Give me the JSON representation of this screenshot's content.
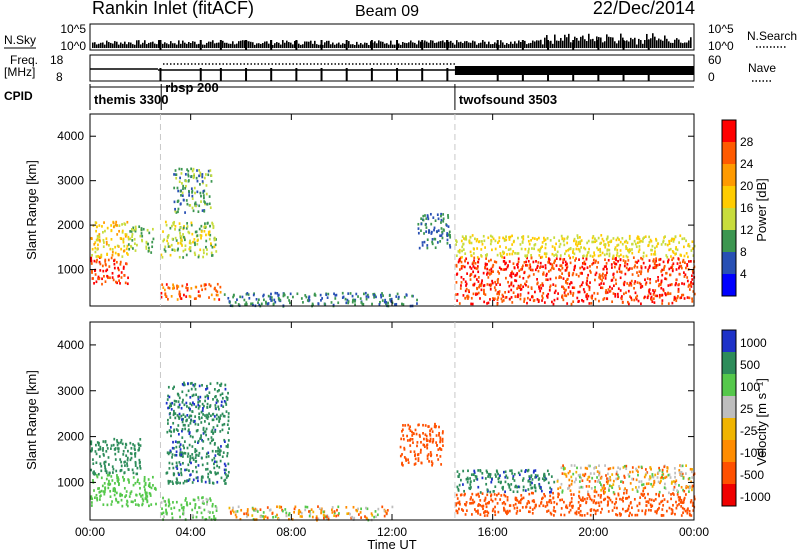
{
  "header": {
    "station": "Rankin Inlet (fitACF)",
    "beam": "Beam 09",
    "date": "22/Dec/2014"
  },
  "noise_panel": {
    "left_label": "N.Sky",
    "left_ticks": [
      "10^5",
      "10^0"
    ],
    "right_label": "N.Search",
    "right_ticks": [
      "10^5",
      "10^0"
    ]
  },
  "freq_panel": {
    "left_label_1": "Freq.",
    "left_label_2": "[MHz]",
    "left_ticks": [
      "18",
      "8"
    ],
    "right_label": "Nave",
    "right_ticks": [
      "60",
      "0"
    ]
  },
  "cpid": {
    "label": "CPID",
    "programs": [
      {
        "name": "themis 3300",
        "start_hour": 0.0
      },
      {
        "name": "rbsp 200",
        "start_hour": 2.83
      },
      {
        "name": "twofsound 3503",
        "start_hour": 14.5
      }
    ]
  },
  "panels": {
    "xlabel": "Time UT",
    "xticks": [
      "00:00",
      "04:00",
      "08:00",
      "12:00",
      "16:00",
      "20:00",
      "00:00"
    ],
    "ylabel": "Slant Range [km]",
    "yticks": [
      "4000",
      "3000",
      "2000",
      "1000"
    ]
  },
  "power_scale": {
    "title": "Power [dB]",
    "labels": [
      "28",
      "24",
      "20",
      "16",
      "12",
      "8",
      "4"
    ],
    "colors": [
      "#ff0000",
      "#ff5a00",
      "#ff9a00",
      "#ffcc00",
      "#c8dc3c",
      "#3c9650",
      "#2850b4",
      "#0000ff"
    ]
  },
  "velocity_scale": {
    "title": "Velocity [m s⁻¹]",
    "labels": [
      "1000",
      "500",
      "100",
      "25",
      "-25",
      "-100",
      "-500",
      "-1000"
    ],
    "colors": [
      "#1e32c8",
      "#2d8c5a",
      "#55c84b",
      "#bebebe",
      "#f0b400",
      "#ff8c00",
      "#ff5000",
      "#f00000"
    ]
  },
  "chart_data": {
    "type": "heatmap",
    "title": "Rankin Inlet (fitACF)",
    "xlabel": "Time UT",
    "ylabel": "Slant Range [km]",
    "xlim": [
      0,
      24
    ],
    "ylim": [
      180,
      4500
    ],
    "power_echo_regions": [
      {
        "t0": 0.0,
        "t1": 1.5,
        "r0": 700,
        "r1": 1300,
        "db": 28
      },
      {
        "t0": 0.0,
        "t1": 1.5,
        "r0": 1300,
        "r1": 2100,
        "db": 18
      },
      {
        "t0": 1.5,
        "t1": 2.5,
        "r0": 1400,
        "r1": 2000,
        "db": 12
      },
      {
        "t0": 2.8,
        "t1": 5.2,
        "r0": 350,
        "r1": 700,
        "db": 26
      },
      {
        "t0": 2.8,
        "t1": 5.0,
        "r0": 1300,
        "r1": 2100,
        "db": 14
      },
      {
        "t0": 3.3,
        "t1": 4.8,
        "r0": 2300,
        "r1": 3300,
        "db": 10
      },
      {
        "t0": 5.2,
        "t1": 9.0,
        "r0": 200,
        "r1": 500,
        "db": 8
      },
      {
        "t0": 9.0,
        "t1": 13.0,
        "r0": 200,
        "r1": 500,
        "db": 8
      },
      {
        "t0": 13.0,
        "t1": 14.3,
        "r0": 1500,
        "r1": 2300,
        "db": 8
      },
      {
        "t0": 14.5,
        "t1": 24.0,
        "r0": 250,
        "r1": 1300,
        "db": 28
      },
      {
        "t0": 14.5,
        "t1": 24.0,
        "r0": 1300,
        "r1": 1800,
        "db": 16
      }
    ],
    "velocity_echo_regions": [
      {
        "t0": 0.0,
        "t1": 2.6,
        "r0": 500,
        "r1": 1200,
        "v": 300
      },
      {
        "t0": 0.0,
        "t1": 2.0,
        "r0": 1200,
        "r1": 2000,
        "v": 800
      },
      {
        "t0": 2.8,
        "t1": 5.0,
        "r0": 200,
        "r1": 700,
        "v": 200
      },
      {
        "t0": 3.0,
        "t1": 5.5,
        "r0": 1000,
        "r1": 3200,
        "v": 900
      },
      {
        "t0": 5.5,
        "t1": 12.0,
        "r0": 200,
        "r1": 500,
        "v": 0
      },
      {
        "t0": 12.3,
        "t1": 14.0,
        "r0": 1400,
        "r1": 2300,
        "v": -300
      },
      {
        "t0": 14.5,
        "t1": 18.5,
        "r0": 800,
        "r1": 1300,
        "v": 900
      },
      {
        "t0": 14.5,
        "t1": 24.0,
        "r0": 300,
        "r1": 800,
        "v": -300
      },
      {
        "t0": 18.5,
        "t1": 24.0,
        "r0": 800,
        "r1": 1400,
        "v": 0
      }
    ]
  }
}
